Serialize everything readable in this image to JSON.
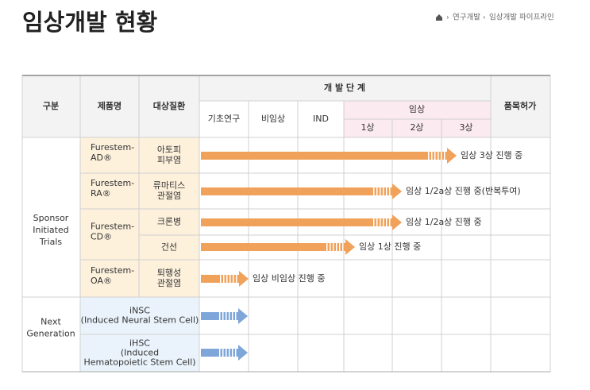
{
  "header": {
    "title": "임상개발 현황",
    "breadcrumb": [
      "연구개발",
      "임상개발 파이프라인"
    ]
  },
  "table": {
    "head": {
      "group": "구분",
      "product": "제품명",
      "indication": "대상질환",
      "stage": "개 발 단 계",
      "clinical": "임상",
      "approval": "품목허가",
      "stages": [
        "기초연구",
        "비임상",
        "IND",
        "1상",
        "2상",
        "3상"
      ]
    },
    "groups": [
      [
        "Sponsor",
        "Initiated",
        "Trials"
      ],
      [
        "Next",
        "Generation"
      ]
    ],
    "products": [
      [
        "Furestem-",
        "AD®"
      ],
      [
        "Furestem-",
        "RA®"
      ],
      [
        "Furestem-",
        "CD®"
      ],
      [
        "Furestem-",
        "OA®"
      ],
      [
        "iNSC",
        "(Induced Neural Stem Cell)"
      ],
      [
        "iHSC",
        "(Induced",
        "Hematopoietic Stem Cell)"
      ]
    ],
    "indications": [
      [
        "아토피",
        "피부염"
      ],
      [
        "류마티스",
        "관절염"
      ],
      [
        "크론병"
      ],
      [
        "건선"
      ],
      [
        "퇴행성",
        "관절염"
      ]
    ],
    "statuses": [
      "임상 3상 진행 중",
      "임상 1/2a상 진행 중(반복투여)",
      "임상 1/2a상 진행 중",
      "임상 1상 진행 중",
      "임상 비임상 진행 중"
    ]
  }
}
